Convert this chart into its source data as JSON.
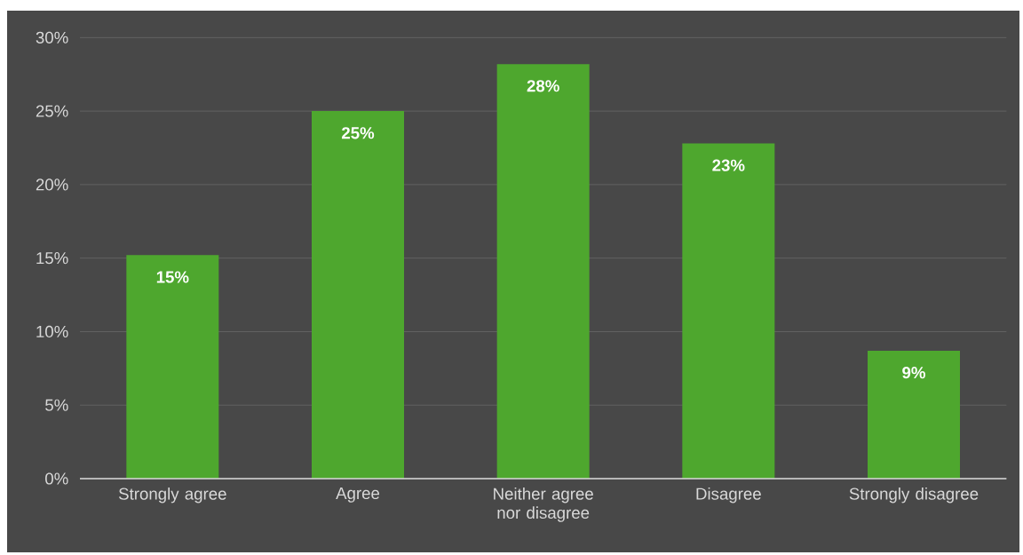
{
  "chart_data": {
    "type": "bar",
    "categories": [
      "Strongly agree",
      "Agree",
      "Neither agree nor disagree",
      "Disagree",
      "Strongly disagree"
    ],
    "values": [
      15.2,
      25.0,
      28.2,
      22.8,
      8.7
    ],
    "value_labels": [
      "15%",
      "25%",
      "28%",
      "23%",
      "9%"
    ],
    "color": "#4ea72e",
    "ylim": [
      0,
      30
    ],
    "yticks": [
      {
        "value": 0,
        "label": "0%"
      },
      {
        "value": 5,
        "label": "5%"
      },
      {
        "value": 10,
        "label": "10%"
      },
      {
        "value": 15,
        "label": "15%"
      },
      {
        "value": 20,
        "label": "20%"
      },
      {
        "value": 25,
        "label": "25%"
      },
      {
        "value": 30,
        "label": "30%"
      }
    ],
    "grid": "y"
  }
}
